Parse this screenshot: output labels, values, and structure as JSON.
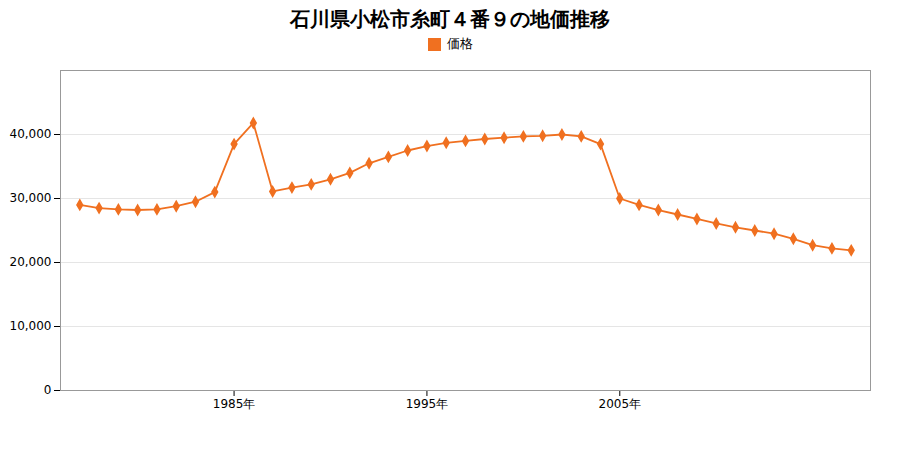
{
  "chart_data": {
    "type": "line",
    "title": "石川県小松市糸町４番９の地価推移",
    "x": [
      1977,
      1978,
      1979,
      1980,
      1981,
      1982,
      1983,
      1984,
      1985,
      1986,
      1987,
      1988,
      1989,
      1990,
      1991,
      1992,
      1993,
      1994,
      1995,
      1996,
      1997,
      1998,
      1999,
      2000,
      2001,
      2002,
      2003,
      2004,
      2005,
      2006,
      2007,
      2008,
      2009,
      2010,
      2011,
      2012,
      2013,
      2014,
      2015,
      2016,
      2017
    ],
    "series": [
      {
        "name": "価格",
        "color": "#f07020",
        "marker": "diamond",
        "line_style": "solid",
        "values": [
          29000,
          28500,
          28300,
          28200,
          28300,
          28800,
          29500,
          31000,
          38500,
          41800,
          31100,
          31700,
          32200,
          33000,
          34000,
          35500,
          36500,
          37500,
          38200,
          38700,
          39000,
          39300,
          39500,
          39700,
          39800,
          40000,
          39700,
          38500,
          30000,
          29000,
          28200,
          27500,
          26800,
          26100,
          25500,
          25000,
          24500,
          23700,
          22700,
          22200,
          21900
        ]
      }
    ],
    "xlim": [
      1976,
      2018
    ],
    "xticks": [
      {
        "value": 1985,
        "label": "1985年"
      },
      {
        "value": 1995,
        "label": "1995年"
      },
      {
        "value": 2005,
        "label": "2005年"
      }
    ],
    "ylim": [
      0,
      50000
    ],
    "yticks": [
      0,
      {
        "value": 10000,
        "label": "10,000"
      },
      {
        "value": 20000,
        "label": "20,000"
      },
      {
        "value": 30000,
        "label": "30,000"
      },
      {
        "value": 40000,
        "label": "40,000"
      }
    ],
    "grid": "y",
    "legend": "top"
  }
}
